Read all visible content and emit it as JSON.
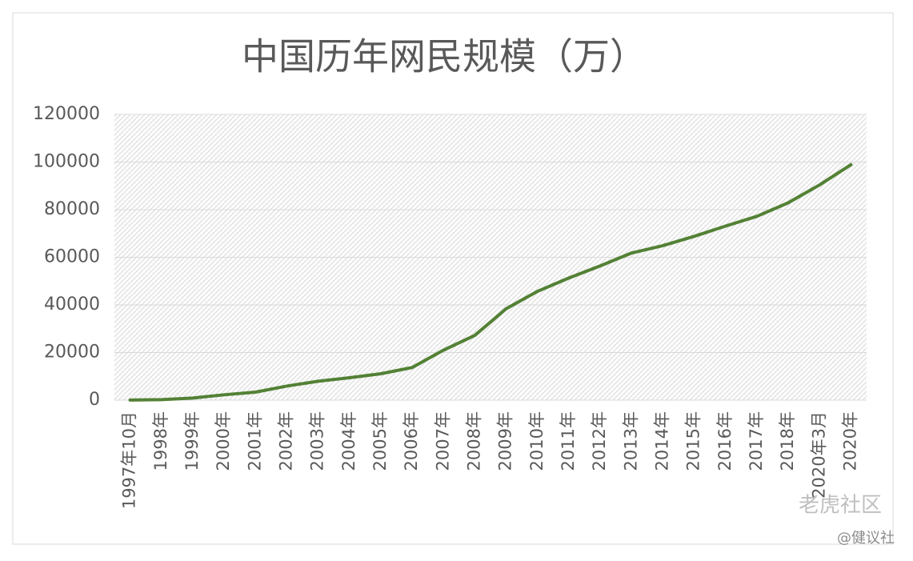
{
  "chart_data": {
    "type": "line",
    "title": "中国历年网民规模（万）",
    "categories": [
      "1997年10月",
      "1998年",
      "1999年",
      "2000年",
      "2001年",
      "2002年",
      "2003年",
      "2004年",
      "2005年",
      "2006年",
      "2007年",
      "2008年",
      "2009年",
      "2010年",
      "2011年",
      "2012年",
      "2013年",
      "2014年",
      "2015年",
      "2016年",
      "2017年",
      "2018年",
      "2020年3月",
      "2020年"
    ],
    "series": [
      {
        "name": "网民规模",
        "color": "#538135",
        "values": [
          62,
          210,
          890,
          2250,
          3370,
          5910,
          7950,
          9400,
          11100,
          13700,
          21000,
          27200,
          38400,
          45700,
          51300,
          56400,
          61800,
          64900,
          68800,
          73100,
          77200,
          82900,
          90400,
          98900
        ]
      }
    ],
    "ylim": [
      0,
      120000
    ],
    "yticks": [
      0,
      20000,
      40000,
      60000,
      80000,
      100000,
      120000
    ],
    "grid": true,
    "annotations": [
      "老虎社区",
      "@健议社"
    ]
  }
}
